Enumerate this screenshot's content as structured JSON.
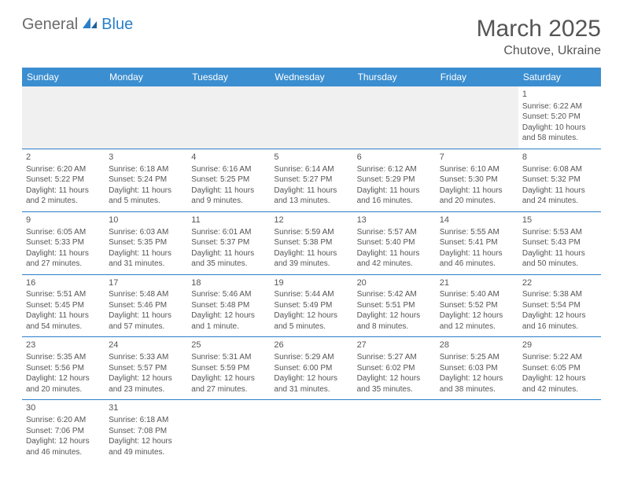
{
  "logo": {
    "part1": "General",
    "part2": "Blue"
  },
  "title": "March 2025",
  "location": "Chutove, Ukraine",
  "colors": {
    "header_bg": "#3b8ed0",
    "header_text": "#ffffff",
    "border": "#2a7fc9",
    "text": "#555555",
    "blank_bg": "#f0f0f0"
  },
  "weekdays": [
    "Sunday",
    "Monday",
    "Tuesday",
    "Wednesday",
    "Thursday",
    "Friday",
    "Saturday"
  ],
  "weeks": [
    [
      null,
      null,
      null,
      null,
      null,
      null,
      {
        "d": "1",
        "sr": "Sunrise: 6:22 AM",
        "ss": "Sunset: 5:20 PM",
        "dl": "Daylight: 10 hours and 58 minutes."
      }
    ],
    [
      {
        "d": "2",
        "sr": "Sunrise: 6:20 AM",
        "ss": "Sunset: 5:22 PM",
        "dl": "Daylight: 11 hours and 2 minutes."
      },
      {
        "d": "3",
        "sr": "Sunrise: 6:18 AM",
        "ss": "Sunset: 5:24 PM",
        "dl": "Daylight: 11 hours and 5 minutes."
      },
      {
        "d": "4",
        "sr": "Sunrise: 6:16 AM",
        "ss": "Sunset: 5:25 PM",
        "dl": "Daylight: 11 hours and 9 minutes."
      },
      {
        "d": "5",
        "sr": "Sunrise: 6:14 AM",
        "ss": "Sunset: 5:27 PM",
        "dl": "Daylight: 11 hours and 13 minutes."
      },
      {
        "d": "6",
        "sr": "Sunrise: 6:12 AM",
        "ss": "Sunset: 5:29 PM",
        "dl": "Daylight: 11 hours and 16 minutes."
      },
      {
        "d": "7",
        "sr": "Sunrise: 6:10 AM",
        "ss": "Sunset: 5:30 PM",
        "dl": "Daylight: 11 hours and 20 minutes."
      },
      {
        "d": "8",
        "sr": "Sunrise: 6:08 AM",
        "ss": "Sunset: 5:32 PM",
        "dl": "Daylight: 11 hours and 24 minutes."
      }
    ],
    [
      {
        "d": "9",
        "sr": "Sunrise: 6:05 AM",
        "ss": "Sunset: 5:33 PM",
        "dl": "Daylight: 11 hours and 27 minutes."
      },
      {
        "d": "10",
        "sr": "Sunrise: 6:03 AM",
        "ss": "Sunset: 5:35 PM",
        "dl": "Daylight: 11 hours and 31 minutes."
      },
      {
        "d": "11",
        "sr": "Sunrise: 6:01 AM",
        "ss": "Sunset: 5:37 PM",
        "dl": "Daylight: 11 hours and 35 minutes."
      },
      {
        "d": "12",
        "sr": "Sunrise: 5:59 AM",
        "ss": "Sunset: 5:38 PM",
        "dl": "Daylight: 11 hours and 39 minutes."
      },
      {
        "d": "13",
        "sr": "Sunrise: 5:57 AM",
        "ss": "Sunset: 5:40 PM",
        "dl": "Daylight: 11 hours and 42 minutes."
      },
      {
        "d": "14",
        "sr": "Sunrise: 5:55 AM",
        "ss": "Sunset: 5:41 PM",
        "dl": "Daylight: 11 hours and 46 minutes."
      },
      {
        "d": "15",
        "sr": "Sunrise: 5:53 AM",
        "ss": "Sunset: 5:43 PM",
        "dl": "Daylight: 11 hours and 50 minutes."
      }
    ],
    [
      {
        "d": "16",
        "sr": "Sunrise: 5:51 AM",
        "ss": "Sunset: 5:45 PM",
        "dl": "Daylight: 11 hours and 54 minutes."
      },
      {
        "d": "17",
        "sr": "Sunrise: 5:48 AM",
        "ss": "Sunset: 5:46 PM",
        "dl": "Daylight: 11 hours and 57 minutes."
      },
      {
        "d": "18",
        "sr": "Sunrise: 5:46 AM",
        "ss": "Sunset: 5:48 PM",
        "dl": "Daylight: 12 hours and 1 minute."
      },
      {
        "d": "19",
        "sr": "Sunrise: 5:44 AM",
        "ss": "Sunset: 5:49 PM",
        "dl": "Daylight: 12 hours and 5 minutes."
      },
      {
        "d": "20",
        "sr": "Sunrise: 5:42 AM",
        "ss": "Sunset: 5:51 PM",
        "dl": "Daylight: 12 hours and 8 minutes."
      },
      {
        "d": "21",
        "sr": "Sunrise: 5:40 AM",
        "ss": "Sunset: 5:52 PM",
        "dl": "Daylight: 12 hours and 12 minutes."
      },
      {
        "d": "22",
        "sr": "Sunrise: 5:38 AM",
        "ss": "Sunset: 5:54 PM",
        "dl": "Daylight: 12 hours and 16 minutes."
      }
    ],
    [
      {
        "d": "23",
        "sr": "Sunrise: 5:35 AM",
        "ss": "Sunset: 5:56 PM",
        "dl": "Daylight: 12 hours and 20 minutes."
      },
      {
        "d": "24",
        "sr": "Sunrise: 5:33 AM",
        "ss": "Sunset: 5:57 PM",
        "dl": "Daylight: 12 hours and 23 minutes."
      },
      {
        "d": "25",
        "sr": "Sunrise: 5:31 AM",
        "ss": "Sunset: 5:59 PM",
        "dl": "Daylight: 12 hours and 27 minutes."
      },
      {
        "d": "26",
        "sr": "Sunrise: 5:29 AM",
        "ss": "Sunset: 6:00 PM",
        "dl": "Daylight: 12 hours and 31 minutes."
      },
      {
        "d": "27",
        "sr": "Sunrise: 5:27 AM",
        "ss": "Sunset: 6:02 PM",
        "dl": "Daylight: 12 hours and 35 minutes."
      },
      {
        "d": "28",
        "sr": "Sunrise: 5:25 AM",
        "ss": "Sunset: 6:03 PM",
        "dl": "Daylight: 12 hours and 38 minutes."
      },
      {
        "d": "29",
        "sr": "Sunrise: 5:22 AM",
        "ss": "Sunset: 6:05 PM",
        "dl": "Daylight: 12 hours and 42 minutes."
      }
    ],
    [
      {
        "d": "30",
        "sr": "Sunrise: 6:20 AM",
        "ss": "Sunset: 7:06 PM",
        "dl": "Daylight: 12 hours and 46 minutes."
      },
      {
        "d": "31",
        "sr": "Sunrise: 6:18 AM",
        "ss": "Sunset: 7:08 PM",
        "dl": "Daylight: 12 hours and 49 minutes."
      },
      null,
      null,
      null,
      null,
      null
    ]
  ]
}
